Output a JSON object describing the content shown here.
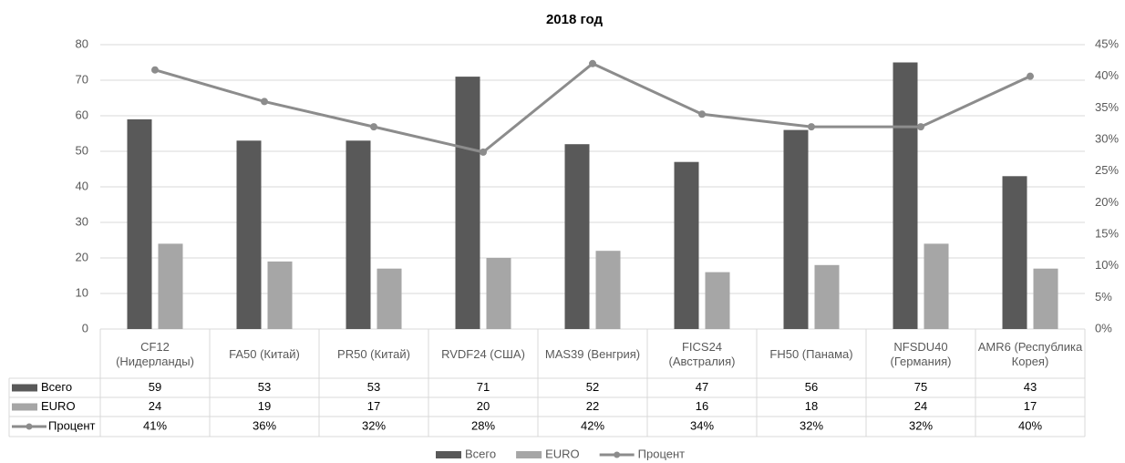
{
  "chart_data": {
    "type": "bar",
    "title": "2018 год",
    "categories": [
      "CF12 (Нидерланды)",
      "FA50 (Китай)",
      "PR50 (Китай)",
      "RVDF24 (США)",
      "MAS39 (Венгрия)",
      "FICS24 (Австралия)",
      "FH50 (Панама)",
      "NFSDU40 (Германия)",
      "AMR6 (Республика Корея)"
    ],
    "series": [
      {
        "name": "Всего",
        "color": "#595959",
        "values": [
          59,
          53,
          53,
          71,
          52,
          47,
          56,
          75,
          43
        ]
      },
      {
        "name": "EURO",
        "color": "#a6a6a6",
        "values": [
          24,
          19,
          17,
          20,
          22,
          16,
          18,
          24,
          17
        ]
      },
      {
        "name": "Процент",
        "color": "#8c8c8c",
        "type": "line",
        "axis": "y2",
        "values": [
          41,
          36,
          32,
          28,
          42,
          34,
          32,
          32,
          40
        ],
        "value_labels": [
          "41%",
          "36%",
          "32%",
          "28%",
          "42%",
          "34%",
          "32%",
          "32%",
          "40%"
        ]
      }
    ],
    "ylim": [
      0,
      80
    ],
    "yticks": [
      0,
      10,
      20,
      30,
      40,
      50,
      60,
      70,
      80
    ],
    "y2lim": [
      0,
      45
    ],
    "y2ticks": [
      {
        "value": 0,
        "label": "0%"
      },
      {
        "value": 5,
        "label": "5%"
      },
      {
        "value": 10,
        "label": "10%"
      },
      {
        "value": 15,
        "label": "15%"
      },
      {
        "value": 20,
        "label": "20%"
      },
      {
        "value": 25,
        "label": "25%"
      },
      {
        "value": 30,
        "label": "30%"
      },
      {
        "value": 35,
        "label": "35%"
      },
      {
        "value": 40,
        "label": "40%"
      },
      {
        "value": 45,
        "label": "45%"
      }
    ],
    "grid": true,
    "legend": "bottom"
  }
}
